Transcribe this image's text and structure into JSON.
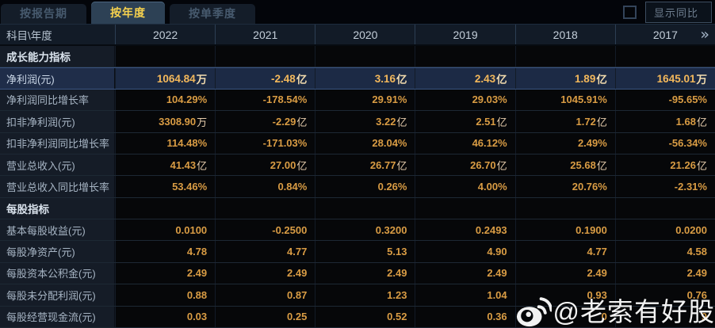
{
  "tabs": [
    {
      "label": "按报告期",
      "active": false
    },
    {
      "label": "按年度",
      "active": true
    },
    {
      "label": "按单季度",
      "active": false
    }
  ],
  "show_yoy": {
    "label": "显示同比",
    "checked": false
  },
  "table": {
    "corner_label": "科目\\年度",
    "years": [
      "2022",
      "2021",
      "2020",
      "2019",
      "2018",
      "2017"
    ],
    "more_icon": "»",
    "rows": [
      {
        "type": "section",
        "label": "成长能力指标",
        "values": [
          "",
          "",
          "",
          "",
          "",
          ""
        ]
      },
      {
        "type": "data",
        "highlight": true,
        "label": "净利润(元)",
        "values": [
          "1064.84万",
          "-2.48亿",
          "3.16亿",
          "2.43亿",
          "1.89亿",
          "1645.01万"
        ]
      },
      {
        "type": "data",
        "label": "净利润同比增长率",
        "values": [
          "104.29%",
          "-178.54%",
          "29.91%",
          "29.03%",
          "1045.91%",
          "-95.65%"
        ]
      },
      {
        "type": "data",
        "label": "扣非净利润(元)",
        "values": [
          "3308.90万",
          "-2.29亿",
          "3.22亿",
          "2.51亿",
          "1.72亿",
          "1.68亿"
        ]
      },
      {
        "type": "data",
        "label": "扣非净利润同比增长率",
        "values": [
          "114.48%",
          "-171.03%",
          "28.04%",
          "46.12%",
          "2.49%",
          "-56.34%"
        ]
      },
      {
        "type": "data",
        "label": "营业总收入(元)",
        "values": [
          "41.43亿",
          "27.00亿",
          "26.77亿",
          "26.70亿",
          "25.68亿",
          "21.26亿"
        ]
      },
      {
        "type": "data",
        "label": "营业总收入同比增长率",
        "values": [
          "53.46%",
          "0.84%",
          "0.26%",
          "4.00%",
          "20.76%",
          "-2.31%"
        ]
      },
      {
        "type": "section",
        "label": "每股指标",
        "values": [
          "",
          "",
          "",
          "",
          "",
          ""
        ]
      },
      {
        "type": "data",
        "label": "基本每股收益(元)",
        "values": [
          "0.0100",
          "-0.2500",
          "0.3200",
          "0.2493",
          "0.1900",
          "0.0200"
        ]
      },
      {
        "type": "data",
        "label": "每股净资产(元)",
        "values": [
          "4.78",
          "4.77",
          "5.13",
          "4.90",
          "4.77",
          "4.58"
        ]
      },
      {
        "type": "data",
        "label": "每股资本公积金(元)",
        "values": [
          "2.49",
          "2.49",
          "2.49",
          "2.49",
          "2.49",
          "2.49"
        ]
      },
      {
        "type": "data",
        "label": "每股未分配利润(元)",
        "values": [
          "0.88",
          "0.87",
          "1.23",
          "1.04",
          "0.93",
          "0.76"
        ]
      },
      {
        "type": "data",
        "label": "每股经营现金流(元)",
        "values": [
          "0.03",
          "0.25",
          "0.52",
          "0.36",
          "0",
          "9"
        ]
      }
    ]
  },
  "watermark": {
    "icon": "weibo-logo",
    "text": "@老索有好股"
  },
  "colors": {
    "value_amber": "#d99c44",
    "highlight_value": "#f3b85b",
    "highlight_row_bg": "#1c2a45",
    "tab_active_text": "#f7d24e",
    "tab_active_bg": "#2d4155",
    "header_bg": "#121b27",
    "label_col_bg": "#151c27"
  }
}
